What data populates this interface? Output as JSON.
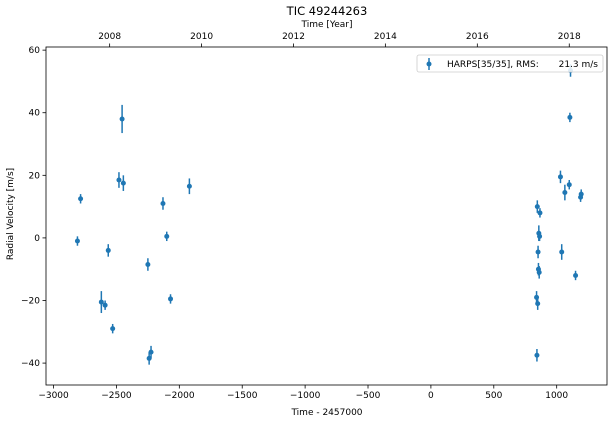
{
  "chart_data": {
    "type": "scatter",
    "title": "TIC 49244263",
    "xlabel": "Time - 2457000",
    "ylabel": "Radial Velocity [m/s]",
    "x2label": "Time [Year]",
    "xlim": [
      -3060,
      1400
    ],
    "ylim": [
      -47,
      61
    ],
    "xticks": [
      -3000,
      -2500,
      -2000,
      -1500,
      -1000,
      -500,
      0,
      500,
      1000
    ],
    "yticks": [
      -40,
      -20,
      0,
      20,
      40,
      60
    ],
    "x2ticks": [
      {
        "label": "2008",
        "x": -2554
      },
      {
        "label": "2010",
        "x": -1823
      },
      {
        "label": "2012",
        "x": -1092
      },
      {
        "label": "2014",
        "x": -362
      },
      {
        "label": "2016",
        "x": 369
      },
      {
        "label": "2018",
        "x": 1100
      }
    ],
    "grid": false,
    "legend": {
      "position": "top-right",
      "label": "HARPS[35/35], RMS:",
      "rms": "21.3 m/s"
    },
    "series": [
      {
        "name": "HARPS",
        "color": "#1f77b4",
        "points": [
          {
            "x": -2810,
            "y": -1,
            "err": 1.5
          },
          {
            "x": -2785,
            "y": 12.5,
            "err": 1.5
          },
          {
            "x": -2620,
            "y": -20.5,
            "err": 3.5
          },
          {
            "x": -2590,
            "y": -21.5,
            "err": 1.5
          },
          {
            "x": -2565,
            "y": -4,
            "err": 2
          },
          {
            "x": -2530,
            "y": -29,
            "err": 1.5
          },
          {
            "x": -2480,
            "y": 18.5,
            "err": 2.5
          },
          {
            "x": -2455,
            "y": 38,
            "err": 4.5
          },
          {
            "x": -2445,
            "y": 17.5,
            "err": 2.5
          },
          {
            "x": -2250,
            "y": -8.5,
            "err": 2
          },
          {
            "x": -2240,
            "y": -38.5,
            "err": 2
          },
          {
            "x": -2225,
            "y": -36.5,
            "err": 2
          },
          {
            "x": -2130,
            "y": 11,
            "err": 2
          },
          {
            "x": -2100,
            "y": 0.5,
            "err": 1.5
          },
          {
            "x": -2070,
            "y": -19.5,
            "err": 1.5
          },
          {
            "x": -1920,
            "y": 16.5,
            "err": 2.5
          },
          {
            "x": 840,
            "y": -19,
            "err": 2
          },
          {
            "x": 843,
            "y": -37.5,
            "err": 2
          },
          {
            "x": 846,
            "y": 10,
            "err": 2
          },
          {
            "x": 849,
            "y": -21,
            "err": 2
          },
          {
            "x": 852,
            "y": -4.5,
            "err": 2
          },
          {
            "x": 855,
            "y": -10,
            "err": 2
          },
          {
            "x": 858,
            "y": 1.5,
            "err": 2.5
          },
          {
            "x": 861,
            "y": -11,
            "err": 2
          },
          {
            "x": 864,
            "y": 0.5,
            "err": 1.5
          },
          {
            "x": 867,
            "y": 8,
            "err": 1.5
          },
          {
            "x": 1030,
            "y": 19.5,
            "err": 2
          },
          {
            "x": 1040,
            "y": -4.5,
            "err": 2.5
          },
          {
            "x": 1065,
            "y": 14.5,
            "err": 2.5
          },
          {
            "x": 1100,
            "y": 17,
            "err": 1.5
          },
          {
            "x": 1105,
            "y": 38.5,
            "err": 1.5
          },
          {
            "x": 1110,
            "y": 53.5,
            "err": 2
          },
          {
            "x": 1150,
            "y": -12,
            "err": 1.5
          },
          {
            "x": 1190,
            "y": 13,
            "err": 1.5
          },
          {
            "x": 1195,
            "y": 14,
            "err": 1.5
          }
        ]
      }
    ]
  }
}
